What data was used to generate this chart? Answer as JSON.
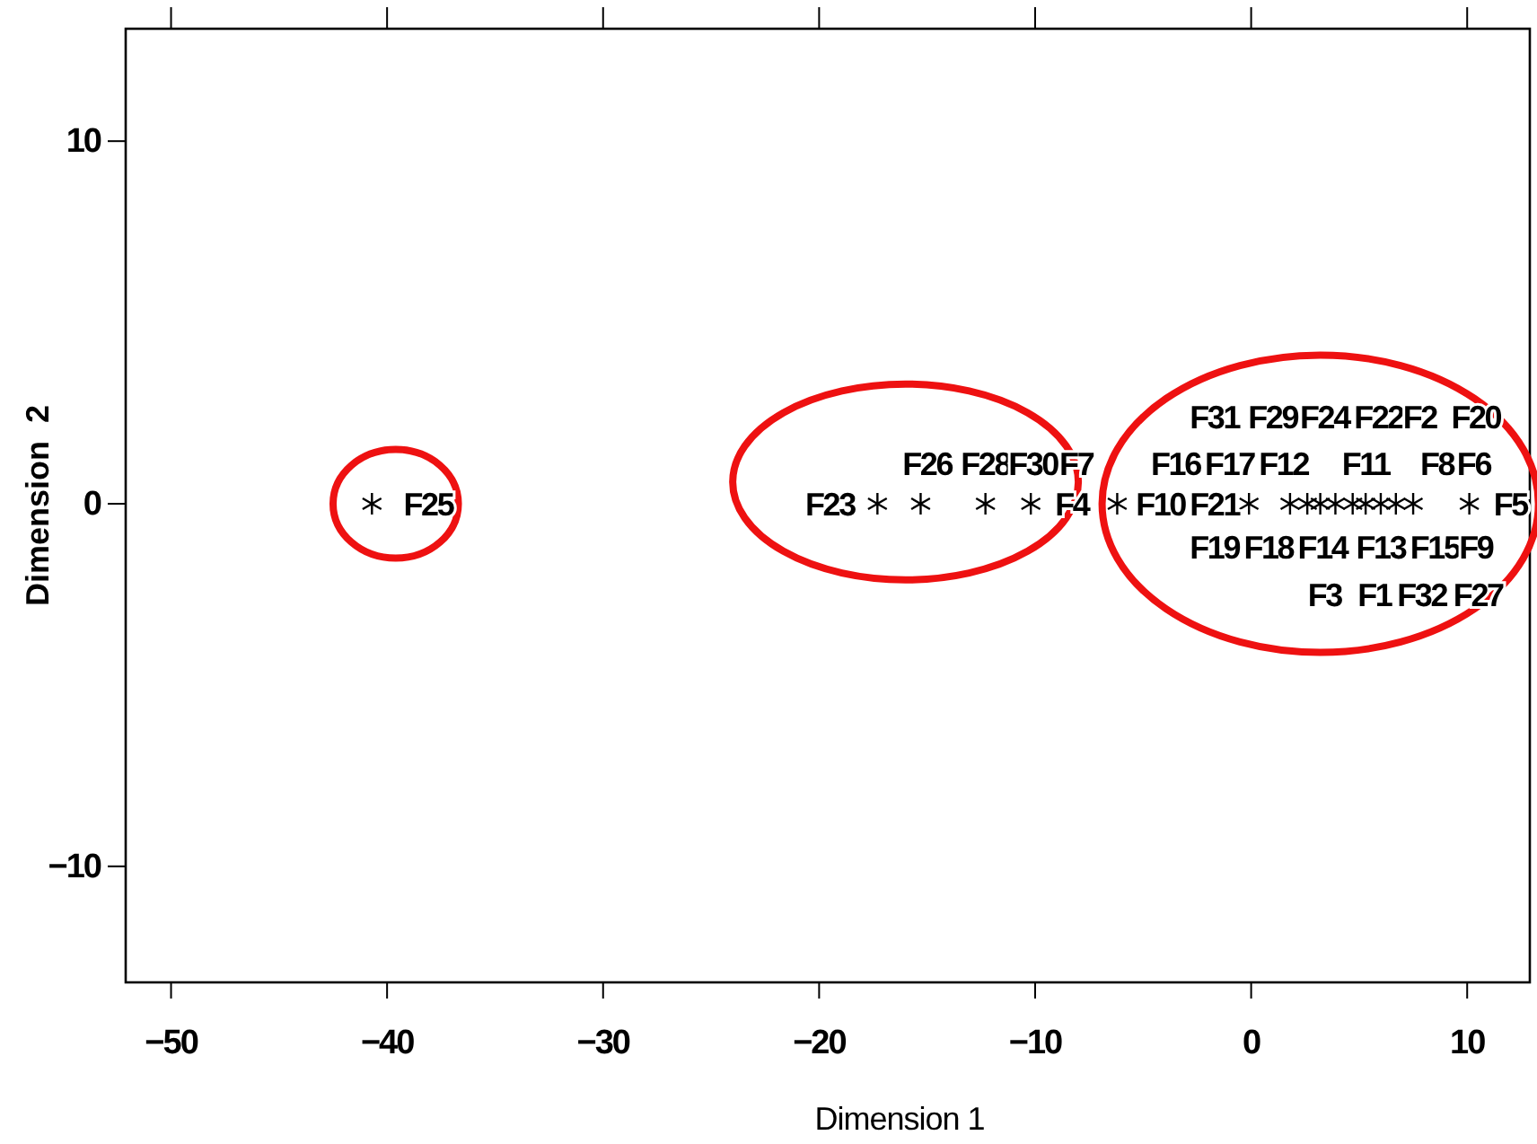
{
  "chart_data": {
    "type": "scatter",
    "xlabel": "Dimension 1",
    "ylabel": "Dimension  2",
    "x": [
      -40.7,
      -17.3,
      -15.3,
      -12.3,
      -10.2,
      -6.2,
      -0.1,
      1.8,
      2.6,
      3.2,
      3.9,
      4.7,
      5.3,
      6.0,
      6.7,
      7.5,
      10.1
    ],
    "values": [
      0,
      0,
      0,
      0,
      0,
      0,
      0,
      0,
      0,
      0,
      0,
      0,
      0,
      0,
      0,
      0,
      0
    ],
    "color": "#000000",
    "marker": "cross",
    "xlim": [
      -52.1,
      12.9
    ],
    "xticks": [
      -50,
      -40,
      -30,
      -20,
      -10,
      0,
      10
    ],
    "ylim": [
      -13.2,
      13.1
    ],
    "yticks": [
      -10,
      0,
      10
    ],
    "grid": false,
    "annotations": [
      "F31",
      "F29",
      "F24",
      "F22",
      "F2",
      "F20",
      "F26",
      "F28",
      "F30",
      "F7",
      "F16",
      "F17",
      "F12",
      "F11",
      "F8",
      "F6",
      "F25",
      "F23",
      "F4",
      "F10",
      "F21",
      "F5",
      "F19",
      "F18",
      "F14",
      "F13",
      "F15",
      "F9",
      "F3",
      "F1",
      "F32",
      "F27"
    ]
  }
}
